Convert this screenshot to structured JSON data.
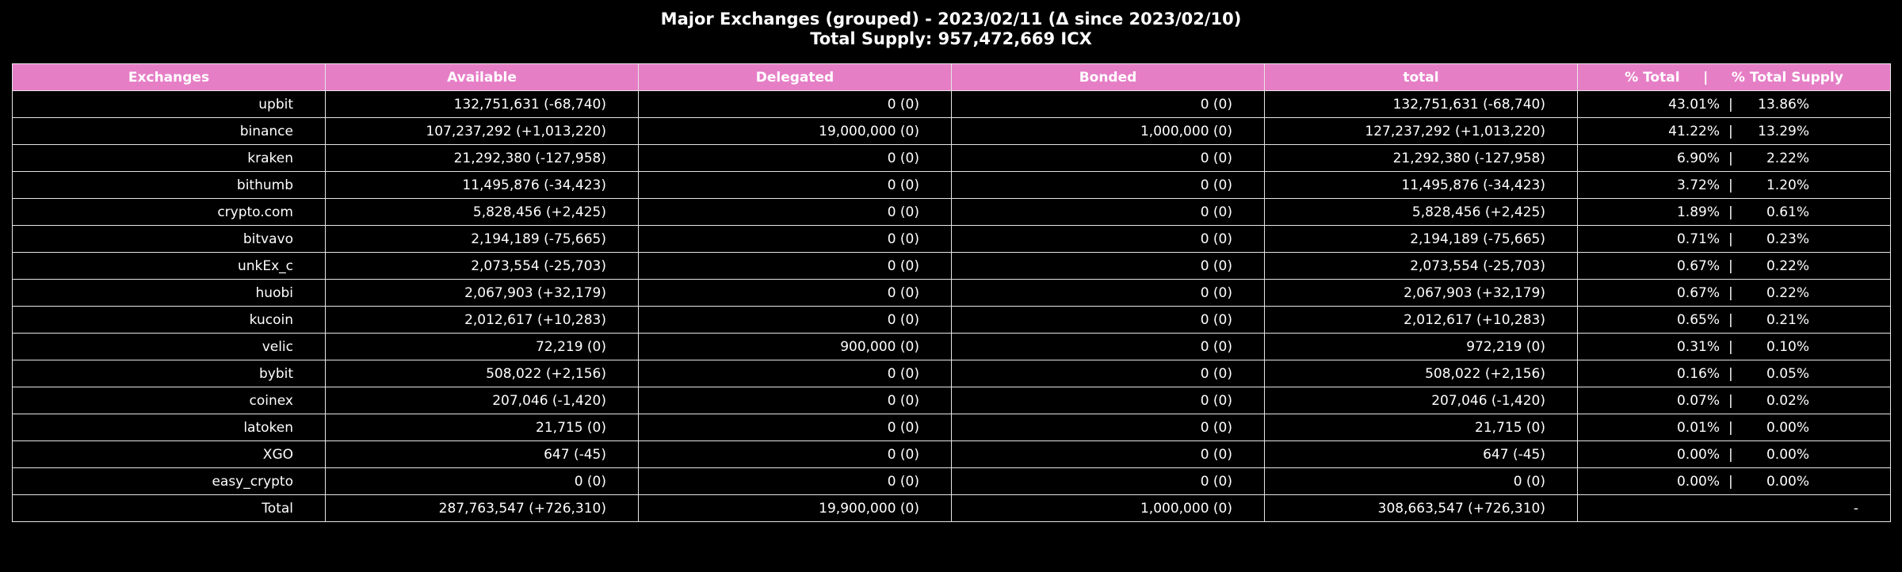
{
  "chart_data": {
    "type": "table",
    "title": "Major Exchanges (grouped) - 2023/02/11 (Δ since 2023/02/10)",
    "subtitle": "Total Supply: 957,472,669 ICX",
    "columns": [
      "Exchanges",
      "Available",
      "Delegated",
      "Bonded",
      "total",
      "% Total     |     % Total Supply"
    ],
    "header_color": "#e67ec6",
    "rows": [
      {
        "name": "upbit",
        "available": "132,751,631 (-68,740)",
        "delegated": "0 (0)",
        "bonded": "0 (0)",
        "total": "132,751,631 (-68,740)",
        "pct_total": "43.01%",
        "pct_supply": "13.86%"
      },
      {
        "name": "binance",
        "available": "107,237,292 (+1,013,220)",
        "delegated": "19,000,000 (0)",
        "bonded": "1,000,000 (0)",
        "total": "127,237,292 (+1,013,220)",
        "pct_total": "41.22%",
        "pct_supply": "13.29%"
      },
      {
        "name": "kraken",
        "available": "21,292,380 (-127,958)",
        "delegated": "0 (0)",
        "bonded": "0 (0)",
        "total": "21,292,380 (-127,958)",
        "pct_total": "6.90%",
        "pct_supply": "2.22%"
      },
      {
        "name": "bithumb",
        "available": "11,495,876 (-34,423)",
        "delegated": "0 (0)",
        "bonded": "0 (0)",
        "total": "11,495,876 (-34,423)",
        "pct_total": "3.72%",
        "pct_supply": "1.20%"
      },
      {
        "name": "crypto.com",
        "available": "5,828,456 (+2,425)",
        "delegated": "0 (0)",
        "bonded": "0 (0)",
        "total": "5,828,456 (+2,425)",
        "pct_total": "1.89%",
        "pct_supply": "0.61%"
      },
      {
        "name": "bitvavo",
        "available": "2,194,189 (-75,665)",
        "delegated": "0 (0)",
        "bonded": "0 (0)",
        "total": "2,194,189 (-75,665)",
        "pct_total": "0.71%",
        "pct_supply": "0.23%"
      },
      {
        "name": "unkEx_c",
        "available": "2,073,554 (-25,703)",
        "delegated": "0 (0)",
        "bonded": "0 (0)",
        "total": "2,073,554 (-25,703)",
        "pct_total": "0.67%",
        "pct_supply": "0.22%"
      },
      {
        "name": "huobi",
        "available": "2,067,903 (+32,179)",
        "delegated": "0 (0)",
        "bonded": "0 (0)",
        "total": "2,067,903 (+32,179)",
        "pct_total": "0.67%",
        "pct_supply": "0.22%"
      },
      {
        "name": "kucoin",
        "available": "2,012,617 (+10,283)",
        "delegated": "0 (0)",
        "bonded": "0 (0)",
        "total": "2,012,617 (+10,283)",
        "pct_total": "0.65%",
        "pct_supply": "0.21%"
      },
      {
        "name": "velic",
        "available": "72,219 (0)",
        "delegated": "900,000 (0)",
        "bonded": "0 (0)",
        "total": "972,219 (0)",
        "pct_total": "0.31%",
        "pct_supply": "0.10%"
      },
      {
        "name": "bybit",
        "available": "508,022 (+2,156)",
        "delegated": "0 (0)",
        "bonded": "0 (0)",
        "total": "508,022 (+2,156)",
        "pct_total": "0.16%",
        "pct_supply": "0.05%"
      },
      {
        "name": "coinex",
        "available": "207,046 (-1,420)",
        "delegated": "0 (0)",
        "bonded": "0 (0)",
        "total": "207,046 (-1,420)",
        "pct_total": "0.07%",
        "pct_supply": "0.02%"
      },
      {
        "name": "latoken",
        "available": "21,715 (0)",
        "delegated": "0 (0)",
        "bonded": "0 (0)",
        "total": "21,715 (0)",
        "pct_total": "0.01%",
        "pct_supply": "0.00%"
      },
      {
        "name": "XGO",
        "available": "647 (-45)",
        "delegated": "0 (0)",
        "bonded": "0 (0)",
        "total": "647 (-45)",
        "pct_total": "0.00%",
        "pct_supply": "0.00%"
      },
      {
        "name": "easy_crypto",
        "available": "0 (0)",
        "delegated": "0 (0)",
        "bonded": "0 (0)",
        "total": "0 (0)",
        "pct_total": "0.00%",
        "pct_supply": "0.00%"
      }
    ],
    "total_row": {
      "name": "Total",
      "available": "287,763,547 (+726,310)",
      "delegated": "19,900,000 (0)",
      "bonded": "1,000,000 (0)",
      "total": "308,663,547 (+726,310)",
      "pct": "-"
    }
  }
}
